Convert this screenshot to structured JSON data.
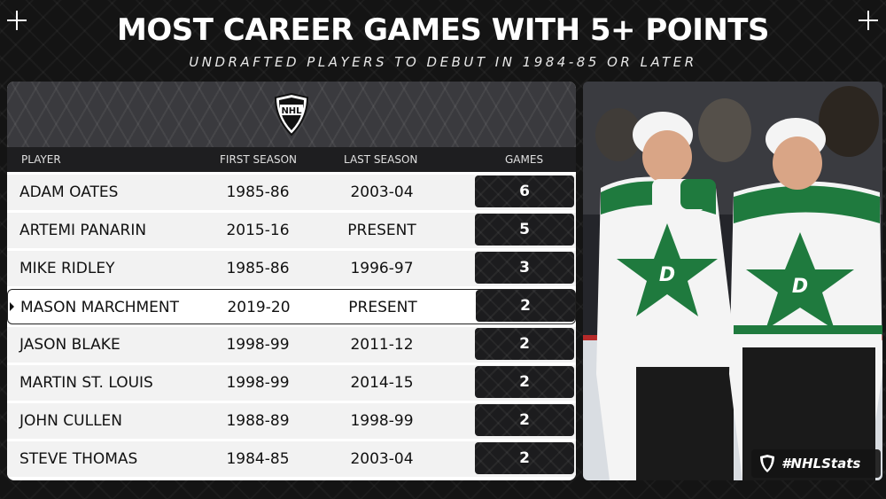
{
  "header": {
    "title": "MOST CAREER GAMES WITH 5+ POINTS",
    "subtitle": "UNDRAFTED PLAYERS TO DEBUT IN 1984-85 OR LATER"
  },
  "table": {
    "logo_text": "NHL",
    "columns": [
      "PLAYER",
      "FIRST SEASON",
      "LAST SEASON",
      "GAMES"
    ],
    "rows": [
      {
        "player": "ADAM OATES",
        "first": "1985-86",
        "last": "2003-04",
        "games": "6"
      },
      {
        "player": "ARTEMI PANARIN",
        "first": "2015-16",
        "last": "PRESENT",
        "games": "5"
      },
      {
        "player": "MIKE RIDLEY",
        "first": "1985-86",
        "last": "1996-97",
        "games": "3"
      },
      {
        "player": "MASON MARCHMENT",
        "first": "2019-20",
        "last": "PRESENT",
        "games": "2"
      },
      {
        "player": "JASON BLAKE",
        "first": "1998-99",
        "last": "2011-12",
        "games": "2"
      },
      {
        "player": "MARTIN ST. LOUIS",
        "first": "1998-99",
        "last": "2014-15",
        "games": "2"
      },
      {
        "player": "JOHN CULLEN",
        "first": "1988-89",
        "last": "1998-99",
        "games": "2"
      },
      {
        "player": "STEVE THOMAS",
        "first": "1984-85",
        "last": "2003-04",
        "games": "2"
      }
    ]
  },
  "photo": {
    "jersey_logo": "D",
    "hashtag": "#NHLStats"
  },
  "colors": {
    "background": "#141414",
    "panel_header": "#3a3a3e",
    "jersey_green": "#1f7a3e",
    "jersey_white": "#f4f4f4"
  }
}
